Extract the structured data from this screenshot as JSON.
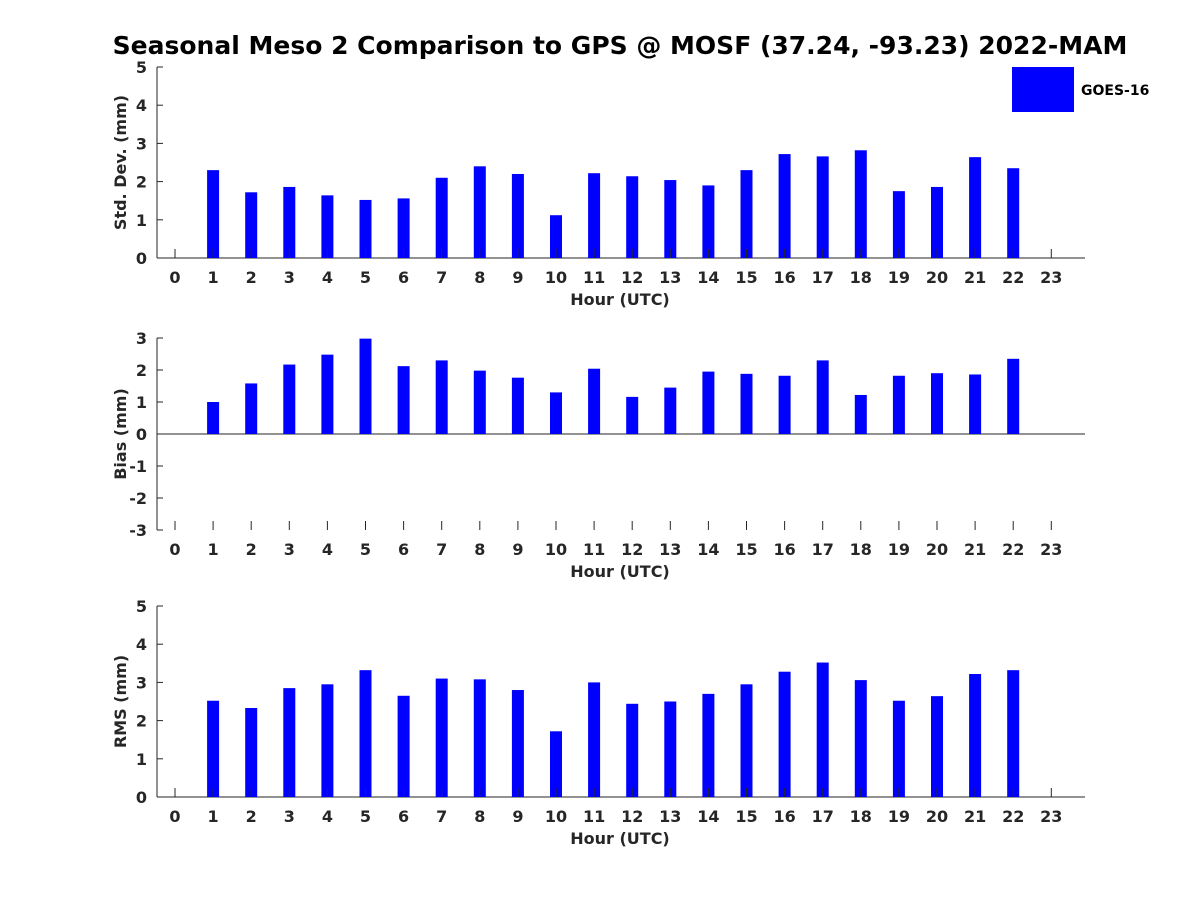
{
  "title": "Seasonal Meso 2 Comparison to GPS @ MOSF (37.24, -93.23) 2022-MAM",
  "legend": {
    "label": "GOES-16",
    "color": "#0000ff"
  },
  "chart_data": [
    {
      "type": "bar",
      "name": "std-dev",
      "ylabel": "Std. Dev. (mm)",
      "xlabel": "Hour (UTC)",
      "ylim": [
        0,
        5
      ],
      "yticks": [
        0,
        1,
        2,
        3,
        4,
        5
      ],
      "categories": [
        "0",
        "1",
        "2",
        "3",
        "4",
        "5",
        "6",
        "7",
        "8",
        "9",
        "10",
        "11",
        "12",
        "13",
        "14",
        "15",
        "16",
        "17",
        "18",
        "19",
        "20",
        "21",
        "22",
        "23"
      ],
      "series": [
        {
          "name": "GOES-16",
          "values": [
            null,
            2.3,
            1.72,
            1.86,
            1.64,
            1.52,
            1.56,
            2.1,
            2.4,
            2.2,
            1.12,
            2.22,
            2.14,
            2.04,
            1.9,
            2.3,
            2.72,
            2.66,
            2.82,
            1.75,
            1.86,
            2.64,
            2.35,
            null
          ]
        }
      ]
    },
    {
      "type": "bar",
      "name": "bias",
      "ylabel": "Bias (mm)",
      "xlabel": "Hour (UTC)",
      "ylim": [
        -3,
        3
      ],
      "yticks": [
        -3,
        -2,
        -1,
        0,
        1,
        2,
        3
      ],
      "categories": [
        "0",
        "1",
        "2",
        "3",
        "4",
        "5",
        "6",
        "7",
        "8",
        "9",
        "10",
        "11",
        "12",
        "13",
        "14",
        "15",
        "16",
        "17",
        "18",
        "19",
        "20",
        "21",
        "22",
        "23"
      ],
      "series": [
        {
          "name": "GOES-16",
          "values": [
            null,
            1.0,
            1.58,
            2.17,
            2.48,
            2.98,
            2.12,
            2.3,
            1.98,
            1.76,
            1.3,
            2.04,
            1.16,
            1.45,
            1.95,
            1.88,
            1.82,
            2.3,
            1.22,
            1.82,
            1.9,
            1.86,
            2.35,
            null
          ]
        }
      ]
    },
    {
      "type": "bar",
      "name": "rms",
      "ylabel": "RMS (mm)",
      "xlabel": "Hour (UTC)",
      "ylim": [
        0,
        5
      ],
      "yticks": [
        0,
        1,
        2,
        3,
        4,
        5
      ],
      "categories": [
        "0",
        "1",
        "2",
        "3",
        "4",
        "5",
        "6",
        "7",
        "8",
        "9",
        "10",
        "11",
        "12",
        "13",
        "14",
        "15",
        "16",
        "17",
        "18",
        "19",
        "20",
        "21",
        "22",
        "23"
      ],
      "series": [
        {
          "name": "GOES-16",
          "values": [
            null,
            2.52,
            2.33,
            2.85,
            2.95,
            3.32,
            2.65,
            3.1,
            3.08,
            2.8,
            1.72,
            3.0,
            2.44,
            2.5,
            2.7,
            2.95,
            3.28,
            3.52,
            3.06,
            2.52,
            2.64,
            3.22,
            3.32,
            null
          ]
        }
      ]
    }
  ]
}
